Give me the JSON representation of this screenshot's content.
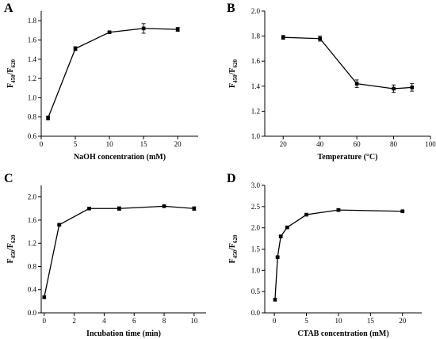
{
  "chart_data": [
    {
      "panel": "A",
      "type": "line",
      "xlabel": "NaOH concentration (mM)",
      "ylabel": {
        "base": "F",
        "sub1": "450",
        "mid": "/F",
        "sub2": "620"
      },
      "xlim": [
        0,
        23
      ],
      "ylim": [
        0.6,
        1.9
      ],
      "xticks": [
        0,
        5,
        10,
        15,
        20
      ],
      "yticks": [
        0.6,
        0.8,
        1.0,
        1.2,
        1.4,
        1.6,
        1.8
      ],
      "ytick_labels": [
        "0.6",
        "0.8",
        "1.0",
        "1.2",
        "1.4",
        "1.6",
        "1.8"
      ],
      "series": [
        {
          "x": [
            1,
            5,
            10,
            15,
            20
          ],
          "y": [
            0.79,
            1.51,
            1.68,
            1.72,
            1.71
          ],
          "err": [
            0.02,
            0.02,
            0.01,
            0.05,
            0.02
          ]
        }
      ]
    },
    {
      "panel": "B",
      "type": "line",
      "xlabel": "Temperature (°C)",
      "ylabel": {
        "base": "F",
        "sub1": "450",
        "mid": "/F",
        "sub2": "620"
      },
      "xlim": [
        10,
        100
      ],
      "ylim": [
        1.0,
        2.0
      ],
      "xticks": [
        20,
        40,
        60,
        80,
        100
      ],
      "yticks": [
        1.0,
        1.2,
        1.4,
        1.6,
        1.8,
        2.0
      ],
      "ytick_labels": [
        "1.0",
        "1.2",
        "1.4",
        "1.6",
        "1.8",
        "2.0"
      ],
      "series": [
        {
          "x": [
            20,
            40,
            60,
            80,
            90
          ],
          "y": [
            1.79,
            1.78,
            1.42,
            1.38,
            1.39
          ],
          "err": [
            0.015,
            0.02,
            0.03,
            0.03,
            0.03
          ]
        }
      ]
    },
    {
      "panel": "C",
      "type": "line",
      "xlabel": "Incubation time (min)",
      "ylabel": {
        "base": "F",
        "sub1": "450",
        "mid": "/F",
        "sub2": "620"
      },
      "xlim": [
        -0.2,
        10.8
      ],
      "ylim": [
        0.0,
        2.2
      ],
      "xticks": [
        0,
        2,
        4,
        6,
        8,
        10
      ],
      "yticks": [
        0.0,
        0.4,
        0.8,
        1.2,
        1.6,
        2.0
      ],
      "ytick_labels": [
        "0.0",
        "0.4",
        "0.8",
        "1.2",
        "1.6",
        "2.0"
      ],
      "series": [
        {
          "x": [
            0,
            1,
            3,
            5,
            8,
            10
          ],
          "y": [
            0.27,
            1.52,
            1.8,
            1.8,
            1.84,
            1.8
          ],
          "err": [
            0.02,
            0.01,
            0.01,
            0.03,
            0.01,
            0.03
          ]
        }
      ]
    },
    {
      "panel": "D",
      "type": "line",
      "xlabel": "CTAB concentration (mM)",
      "ylabel": {
        "base": "F",
        "sub1": "450",
        "mid": "/F",
        "sub2": "620"
      },
      "xlim": [
        -1.5,
        23
      ],
      "ylim": [
        0.0,
        3.0
      ],
      "xticks": [
        0,
        5,
        10,
        15,
        20
      ],
      "yticks": [
        0.0,
        0.5,
        1.0,
        1.5,
        2.0,
        2.5,
        3.0
      ],
      "ytick_labels": [
        "0.0",
        "0.5",
        "1.0",
        "1.5",
        "2.0",
        "2.5",
        "3.0"
      ],
      "series": [
        {
          "x": [
            0.1,
            0.5,
            1,
            2,
            5,
            10,
            20
          ],
          "y": [
            0.31,
            1.31,
            1.8,
            2.01,
            2.31,
            2.42,
            2.39
          ],
          "err": [
            0.0,
            0.02,
            0.02,
            0.02,
            0.02,
            0.03,
            0.02
          ]
        }
      ]
    }
  ]
}
